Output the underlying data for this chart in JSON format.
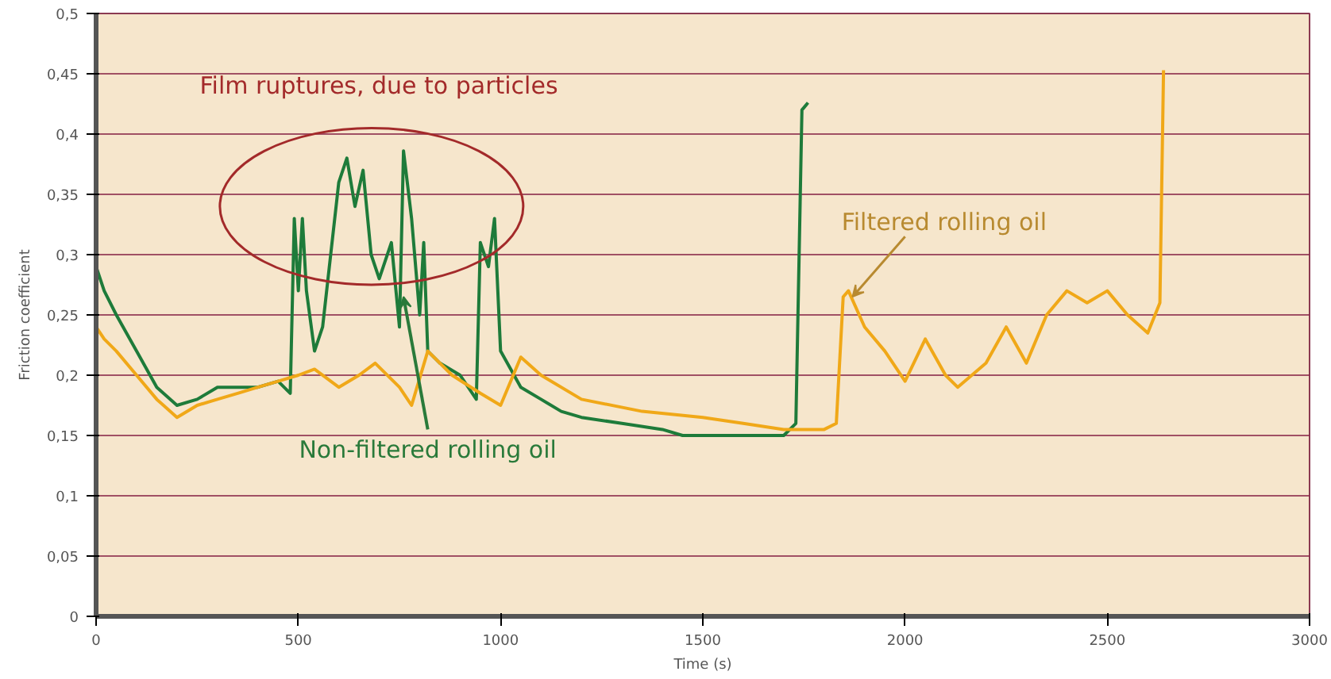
{
  "chart_data": {
    "type": "line",
    "xlabel": "Time (s)",
    "ylabel": "Friction coefficient",
    "xlim": [
      0,
      3000
    ],
    "xticks": [
      0,
      500,
      1000,
      1500,
      2000,
      2500,
      3000
    ],
    "ylim": [
      0,
      0.5
    ],
    "yticks": [
      {
        "value": 0,
        "label": "0"
      },
      {
        "value": 0.05,
        "label": "0,05"
      },
      {
        "value": 0.1,
        "label": "0,1"
      },
      {
        "value": 0.15,
        "label": "0,15"
      },
      {
        "value": 0.2,
        "label": "0,2"
      },
      {
        "value": 0.25,
        "label": "0,25"
      },
      {
        "value": 0.3,
        "label": "0,3"
      },
      {
        "value": 0.35,
        "label": "0,35"
      },
      {
        "value": 0.4,
        "label": "0,4"
      },
      {
        "value": 0.45,
        "label": "0,45"
      },
      {
        "value": 0.5,
        "label": "0,5"
      }
    ],
    "grid": "y",
    "marker": "none",
    "line_style": "solid",
    "series": [
      {
        "color": "#1e7b3a",
        "x": [
          0,
          20,
          50,
          100,
          150,
          200,
          250,
          300,
          350,
          400,
          450,
          480,
          490,
          500,
          510,
          520,
          540,
          560,
          580,
          600,
          620,
          640,
          660,
          680,
          700,
          730,
          750,
          760,
          780,
          800,
          810,
          820,
          850,
          900,
          940,
          950,
          970,
          985,
          1000,
          1050,
          1100,
          1150,
          1200,
          1300,
          1400,
          1450,
          1500,
          1600,
          1700,
          1730,
          1745,
          1760
        ],
        "values": [
          0.29,
          0.27,
          0.25,
          0.22,
          0.19,
          0.175,
          0.18,
          0.19,
          0.19,
          0.19,
          0.195,
          0.185,
          0.33,
          0.27,
          0.33,
          0.27,
          0.22,
          0.24,
          0.3,
          0.36,
          0.38,
          0.34,
          0.37,
          0.3,
          0.28,
          0.31,
          0.24,
          0.386,
          0.33,
          0.25,
          0.31,
          0.22,
          0.21,
          0.2,
          0.18,
          0.31,
          0.29,
          0.33,
          0.22,
          0.19,
          0.18,
          0.17,
          0.165,
          0.16,
          0.155,
          0.15,
          0.15,
          0.15,
          0.15,
          0.16,
          0.42,
          0.426
        ]
      },
      {
        "color": "#f0a818",
        "x": [
          0,
          20,
          50,
          100,
          150,
          200,
          250,
          300,
          350,
          400,
          450,
          500,
          540,
          600,
          650,
          690,
          750,
          780,
          820,
          880,
          950,
          1000,
          1050,
          1100,
          1200,
          1350,
          1500,
          1600,
          1700,
          1800,
          1830,
          1847,
          1860,
          1900,
          1950,
          2000,
          2050,
          2100,
          2130,
          2200,
          2250,
          2300,
          2350,
          2400,
          2450,
          2500,
          2550,
          2600,
          2630,
          2639
        ],
        "values": [
          0.24,
          0.23,
          0.22,
          0.2,
          0.18,
          0.165,
          0.175,
          0.18,
          0.185,
          0.19,
          0.195,
          0.2,
          0.205,
          0.19,
          0.2,
          0.21,
          0.19,
          0.175,
          0.22,
          0.2,
          0.185,
          0.175,
          0.215,
          0.2,
          0.18,
          0.17,
          0.165,
          0.16,
          0.155,
          0.155,
          0.16,
          0.265,
          0.27,
          0.24,
          0.22,
          0.195,
          0.23,
          0.2,
          0.19,
          0.21,
          0.24,
          0.21,
          0.25,
          0.27,
          0.26,
          0.27,
          0.25,
          0.235,
          0.26,
          0.453
        ]
      }
    ],
    "annotations": [
      "Film ruptures, due to particles",
      {
        "text": "Non-filtered rolling oil",
        "x": 760,
        "y": 0.265
      },
      {
        "text": "Filtered rolling oil",
        "x": 1860,
        "y": 0.265
      }
    ]
  }
}
